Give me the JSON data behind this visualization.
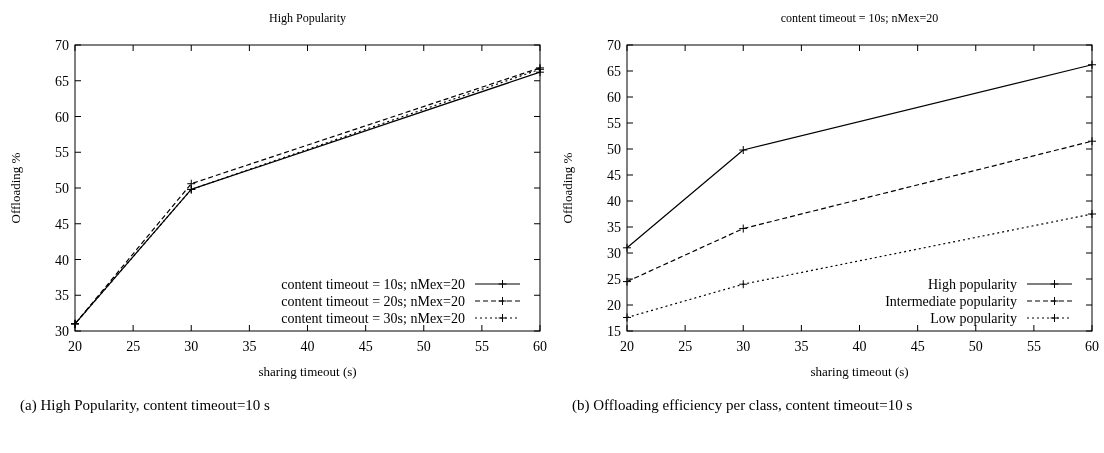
{
  "chart_data": [
    {
      "type": "line",
      "title": "High Popularity",
      "xlabel": "sharing timeout (s)",
      "ylabel": "Offloading %",
      "x": [
        20,
        30,
        60
      ],
      "xlim": [
        20,
        60
      ],
      "xticks": [
        20,
        25,
        30,
        35,
        40,
        45,
        50,
        55,
        60
      ],
      "ylim": [
        30,
        70
      ],
      "yticks": [
        30,
        35,
        40,
        45,
        50,
        55,
        60,
        65,
        70
      ],
      "legend": "bottom right",
      "annotations": [
        "(a) High Popularity, content timeout=10 s"
      ],
      "series": [
        {
          "name": "content timeout = 10s; nMex=20",
          "color": "#000000",
          "values": [
            31,
            49.8,
            66.2
          ],
          "line_style": "solid",
          "marker": "cross"
        },
        {
          "name": "content timeout = 20s; nMex=20",
          "color": "#000000",
          "values": [
            31,
            50.6,
            66.8
          ],
          "line_style": "dashed",
          "marker": "cross"
        },
        {
          "name": "content timeout = 30s; nMex=20",
          "color": "#000000",
          "values": [
            31,
            49.8,
            66.6
          ],
          "line_style": "dotted",
          "marker": "cross"
        }
      ]
    },
    {
      "type": "line",
      "title": "content timeout = 10s; nMex=20",
      "xlabel": "sharing timeout (s)",
      "ylabel": "Offloading %",
      "x": [
        20,
        30,
        60
      ],
      "xlim": [
        20,
        60
      ],
      "xticks": [
        20,
        25,
        30,
        35,
        40,
        45,
        50,
        55,
        60
      ],
      "ylim": [
        15,
        70
      ],
      "yticks": [
        15,
        20,
        25,
        30,
        35,
        40,
        45,
        50,
        55,
        60,
        65,
        70
      ],
      "legend": "bottom right",
      "annotations": [
        "(b) Offloading efficiency per class, content timeout=10 s"
      ],
      "series": [
        {
          "name": "High popularity",
          "color": "#000000",
          "values": [
            31,
            49.8,
            66.2
          ],
          "line_style": "solid",
          "marker": "cross"
        },
        {
          "name": "Intermediate popularity",
          "color": "#000000",
          "values": [
            24.5,
            34.7,
            51.5
          ],
          "line_style": "dashed",
          "marker": "cross"
        },
        {
          "name": "Low popularity",
          "color": "#000000",
          "values": [
            17.6,
            24,
            37.5
          ],
          "line_style": "dotted",
          "marker": "cross"
        }
      ]
    }
  ]
}
